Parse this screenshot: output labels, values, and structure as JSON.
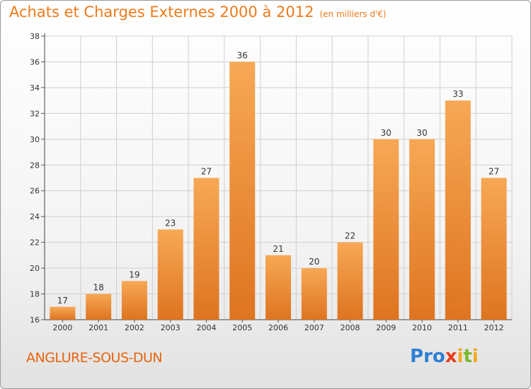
{
  "title": "Achats et Charges Externes 2000 à 2012",
  "unit": "(en milliers d'€)",
  "commune": "ANGLURE-SOUS-DUN",
  "logo": {
    "text": "Proxiti",
    "letters": [
      {
        "ch": "P",
        "color": "#2f7fd4"
      },
      {
        "ch": "r",
        "color": "#2f7fd4"
      },
      {
        "ch": "o",
        "color": "#2f7fd4"
      },
      {
        "ch": "x",
        "color": "#e83d1e"
      },
      {
        "ch": "i",
        "color": "#f2a81e"
      },
      {
        "ch": "t",
        "color": "#7ab830"
      },
      {
        "ch": "i",
        "color": "#f2a81e"
      }
    ]
  },
  "colors": {
    "accent": "#f07a1a",
    "bar_top": "#f7a855",
    "bar_bottom": "#de7420",
    "grid": "#cfcfcf"
  },
  "chart_data": {
    "type": "bar",
    "title": "Achats et Charges Externes 2000 à 2012",
    "subtitle": "(en milliers d'€)",
    "categories": [
      "2000",
      "2001",
      "2002",
      "2003",
      "2004",
      "2005",
      "2006",
      "2007",
      "2008",
      "2009",
      "2010",
      "2011",
      "2012"
    ],
    "values": [
      17,
      18,
      19,
      23,
      27,
      36,
      21,
      20,
      22,
      30,
      30,
      33,
      27
    ],
    "ylim": [
      16,
      38
    ],
    "yticks": [
      16,
      18,
      20,
      22,
      24,
      26,
      28,
      30,
      32,
      34,
      36,
      38
    ],
    "grid": true,
    "data_labels": true
  }
}
